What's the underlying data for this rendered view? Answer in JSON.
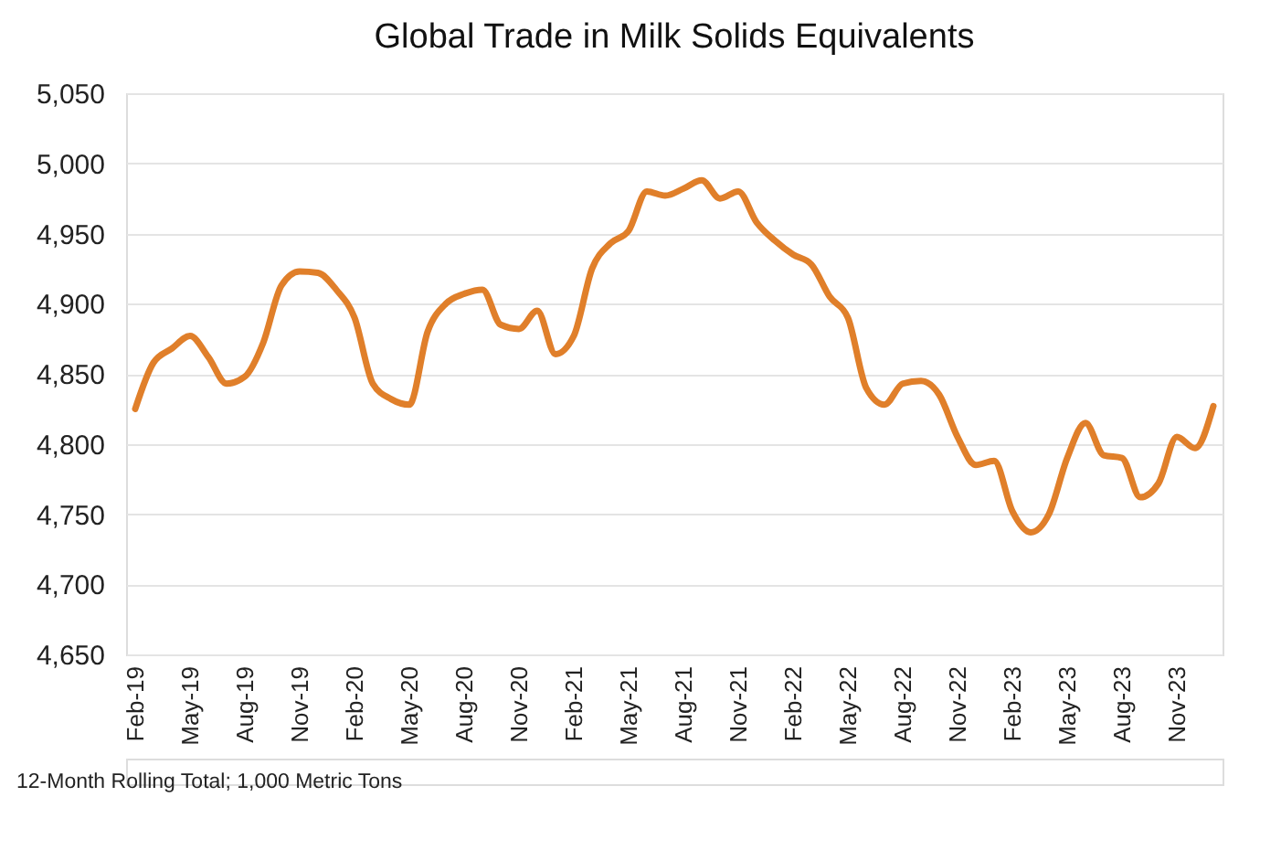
{
  "chart_data": {
    "type": "line",
    "title": "Global Trade in Milk Solids Equivalents",
    "categories": [
      "Feb-19",
      null,
      null,
      "May-19",
      null,
      null,
      "Aug-19",
      null,
      null,
      "Nov-19",
      null,
      null,
      "Feb-20",
      null,
      null,
      "May-20",
      null,
      null,
      "Aug-20",
      null,
      null,
      "Nov-20",
      null,
      null,
      "Feb-21",
      null,
      null,
      "May-21",
      null,
      null,
      "Aug-21",
      null,
      null,
      "Nov-21",
      null,
      null,
      "Feb-22",
      null,
      null,
      "May-22",
      null,
      null,
      "Aug-22",
      null,
      null,
      "Nov-22",
      null,
      null,
      "Feb-23",
      null,
      null,
      "May-23",
      null,
      null,
      "Aug-23",
      null,
      null,
      "Nov-23",
      null,
      null
    ],
    "series": [
      {
        "color": "#e07f2a",
        "values": [
          4825,
          4858,
          4868,
          4877,
          4862,
          4843,
          4848,
          4872,
          4913,
          4923,
          4922,
          4910,
          4890,
          4843,
          4832,
          4828,
          4880,
          4900,
          4907,
          4910,
          4885,
          4882,
          4895,
          4864,
          4877,
          4925,
          4943,
          4952,
          4980,
          4977,
          4982,
          4988,
          4975,
          4980,
          4958,
          4945,
          4935,
          4928,
          4905,
          4890,
          4840,
          4828,
          4843,
          4845,
          4835,
          4805,
          4785,
          4788,
          4752,
          4737,
          4750,
          4790,
          4815,
          4792,
          4790,
          4762,
          4772,
          4805,
          4797,
          4827
        ]
      }
    ],
    "ylim": [
      4650,
      5050
    ],
    "yticks": [
      {
        "value": 4650,
        "label": "4,650"
      },
      {
        "value": 4700,
        "label": "4,700"
      },
      {
        "value": 4750,
        "label": "4,750"
      },
      {
        "value": 4800,
        "label": "4,800"
      },
      {
        "value": 4850,
        "label": "4,850"
      },
      {
        "value": 4900,
        "label": "4,900"
      },
      {
        "value": 4950,
        "label": "4,950"
      },
      {
        "value": 5000,
        "label": "5,000"
      },
      {
        "value": 5050,
        "label": "5,050"
      }
    ],
    "grid": "y",
    "line_style": "solid",
    "marker": "none",
    "annotations": [
      "12-Month Rolling Total; 1,000 Metric Tons"
    ]
  }
}
